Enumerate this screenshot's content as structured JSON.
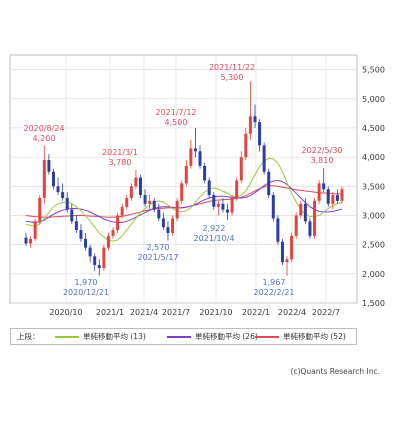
{
  "chart_data": {
    "type": "candlestick",
    "y_ticks": [
      "1,500",
      "2,000",
      "2,500",
      "3,000",
      "3,500",
      "4,000",
      "4,500",
      "5,000",
      "5,500"
    ],
    "x_ticks": [
      "2020/10",
      "2021/1",
      "2021/4",
      "2021/7",
      "2021/10",
      "2022/1",
      "2022/4",
      "2022/7"
    ],
    "ylim": [
      1500,
      5750
    ],
    "grid": true,
    "colors": {
      "up": "#e8413b",
      "down": "#2a3fa3",
      "ma13": "#9cc63b",
      "ma26": "#7a3fd1",
      "ma52": "#e0485a",
      "annot_high": "#e0485a",
      "annot_low": "#4a6fc0"
    },
    "annotations": [
      {
        "date": "2020/8/24",
        "value": "4,200",
        "kind": "high"
      },
      {
        "date": "2021/3/1",
        "value": "3,780",
        "kind": "high"
      },
      {
        "date": "2021/7/12",
        "value": "4,500",
        "kind": "high"
      },
      {
        "date": "2021/11/22",
        "value": "5,300",
        "kind": "high"
      },
      {
        "date": "2022/5/30",
        "value": "3,810",
        "kind": "high"
      },
      {
        "date": "2020/12/21",
        "value": "1,970",
        "kind": "low"
      },
      {
        "date": "2021/5/17",
        "value": "2,570",
        "kind": "low"
      },
      {
        "date": "2021/10/4",
        "value": "2,922",
        "kind": "low"
      },
      {
        "date": "2022/2/21",
        "value": "1,967",
        "kind": "low"
      }
    ],
    "candles": [
      [
        2620,
        2700,
        2480,
        2520
      ],
      [
        2520,
        2640,
        2450,
        2600
      ],
      [
        2600,
        2950,
        2560,
        2900
      ],
      [
        2900,
        3350,
        2850,
        3300
      ],
      [
        3300,
        4200,
        3200,
        3950
      ],
      [
        3950,
        4050,
        3700,
        3750
      ],
      [
        3750,
        3800,
        3450,
        3500
      ],
      [
        3500,
        3650,
        3350,
        3400
      ],
      [
        3400,
        3550,
        3250,
        3300
      ],
      [
        3300,
        3400,
        3050,
        3100
      ],
      [
        3100,
        3200,
        2850,
        2900
      ],
      [
        2900,
        3000,
        2700,
        2750
      ],
      [
        2750,
        2850,
        2550,
        2600
      ],
      [
        2600,
        2700,
        2400,
        2450
      ],
      [
        2450,
        2500,
        2200,
        2300
      ],
      [
        2300,
        2350,
        2050,
        2150
      ],
      [
        2150,
        2250,
        1970,
        2100
      ],
      [
        2100,
        2500,
        2050,
        2450
      ],
      [
        2450,
        2700,
        2400,
        2650
      ],
      [
        2650,
        2800,
        2600,
        2750
      ],
      [
        2750,
        3050,
        2700,
        3000
      ],
      [
        3000,
        3200,
        2950,
        3150
      ],
      [
        3150,
        3350,
        3100,
        3300
      ],
      [
        3300,
        3550,
        3250,
        3500
      ],
      [
        3500,
        3780,
        3450,
        3650
      ],
      [
        3650,
        3700,
        3300,
        3350
      ],
      [
        3350,
        3450,
        3150,
        3200
      ],
      [
        3200,
        3350,
        3100,
        3250
      ],
      [
        3250,
        3300,
        3050,
        3100
      ],
      [
        3100,
        3200,
        2900,
        2950
      ],
      [
        2950,
        3050,
        2750,
        2800
      ],
      [
        2800,
        2900,
        2570,
        2700
      ],
      [
        2700,
        3000,
        2650,
        2950
      ],
      [
        2950,
        3300,
        2900,
        3250
      ],
      [
        3250,
        3600,
        3200,
        3550
      ],
      [
        3550,
        3950,
        3500,
        3850
      ],
      [
        3850,
        4300,
        3800,
        4150
      ],
      [
        4150,
        4500,
        4000,
        4100
      ],
      [
        4100,
        4200,
        3800,
        3850
      ],
      [
        3850,
        3900,
        3550,
        3600
      ],
      [
        3600,
        3650,
        3300,
        3350
      ],
      [
        3350,
        3400,
        3100,
        3150
      ],
      [
        3150,
        3250,
        3000,
        3200
      ],
      [
        3200,
        3300,
        3050,
        3100
      ],
      [
        3100,
        3200,
        2922,
        3050
      ],
      [
        3050,
        3350,
        3000,
        3300
      ],
      [
        3300,
        3650,
        3250,
        3600
      ],
      [
        3600,
        4100,
        3550,
        4000
      ],
      [
        4000,
        4500,
        3950,
        4400
      ],
      [
        4400,
        5300,
        4300,
        4700
      ],
      [
        4700,
        4900,
        4500,
        4600
      ],
      [
        4600,
        4650,
        4100,
        4200
      ],
      [
        4200,
        4250,
        3700,
        3750
      ],
      [
        3750,
        3800,
        3300,
        3350
      ],
      [
        3350,
        3400,
        2900,
        2950
      ],
      [
        2950,
        3000,
        2500,
        2550
      ],
      [
        2550,
        2600,
        2150,
        2200
      ],
      [
        2200,
        2300,
        1967,
        2250
      ],
      [
        2250,
        2700,
        2200,
        2650
      ],
      [
        2650,
        3050,
        2600,
        3000
      ],
      [
        3000,
        3250,
        2950,
        3200
      ],
      [
        3200,
        3300,
        2850,
        2900
      ],
      [
        2900,
        2950,
        2600,
        2650
      ],
      [
        2650,
        3300,
        2600,
        3250
      ],
      [
        3250,
        3600,
        3200,
        3550
      ],
      [
        3550,
        3810,
        3400,
        3450
      ],
      [
        3450,
        3500,
        3150,
        3200
      ],
      [
        3200,
        3400,
        3100,
        3350
      ],
      [
        3350,
        3450,
        3200,
        3250
      ],
      [
        3250,
        3500,
        3200,
        3450
      ]
    ],
    "ma13": [
      2850,
      2830,
      2820,
      2850,
      2950,
      3050,
      3150,
      3200,
      3220,
      3230,
      3200,
      3150,
      3080,
      3000,
      2900,
      2800,
      2700,
      2630,
      2580,
      2560,
      2580,
      2650,
      2750,
      2850,
      2950,
      3050,
      3120,
      3180,
      3230,
      3250,
      3230,
      3180,
      3120,
      3080,
      3060,
      3080,
      3130,
      3220,
      3320,
      3400,
      3450,
      3470,
      3450,
      3420,
      3380,
      3330,
      3320,
      3350,
      3420,
      3550,
      3700,
      3840,
      3930,
      3980,
      3970,
      3900,
      3750,
      3560,
      3380,
      3230,
      3100,
      3020,
      2980,
      2980,
      3000,
      3060,
      3120,
      3170,
      3200,
      3220
    ],
    "ma26": [
      2900,
      2890,
      2880,
      2890,
      2920,
      2970,
      3020,
      3060,
      3090,
      3110,
      3120,
      3120,
      3110,
      3090,
      3060,
      3020,
      2980,
      2940,
      2910,
      2890,
      2880,
      2880,
      2900,
      2930,
      2970,
      3010,
      3050,
      3090,
      3120,
      3140,
      3150,
      3150,
      3140,
      3130,
      3130,
      3140,
      3160,
      3190,
      3230,
      3270,
      3300,
      3320,
      3330,
      3330,
      3320,
      3310,
      3300,
      3300,
      3310,
      3340,
      3390,
      3450,
      3510,
      3560,
      3590,
      3600,
      3580,
      3530,
      3460,
      3380,
      3300,
      3220,
      3150,
      3100,
      3070,
      3060,
      3060,
      3070,
      3090,
      3110
    ],
    "ma52": [
      3000,
      2990,
      2980,
      2975,
      2970,
      2970,
      2975,
      2980,
      2985,
      2990,
      2995,
      3000,
      3000,
      2995,
      2990,
      2985,
      2980,
      2975,
      2970,
      2970,
      2975,
      2985,
      3000,
      3020,
      3040,
      3060,
      3080,
      3095,
      3110,
      3120,
      3125,
      3130,
      3130,
      3130,
      3135,
      3145,
      3160,
      3180,
      3200,
      3220,
      3240,
      3255,
      3265,
      3270,
      3275,
      3280,
      3290,
      3310,
      3340,
      3380,
      3420,
      3460,
      3490,
      3510,
      3510,
      3500,
      3485,
      3470,
      3455,
      3440,
      3430,
      3420,
      3410,
      3400,
      3390,
      3385,
      3380,
      3375,
      3370,
      3365
    ]
  },
  "legend": {
    "prefix": "上段：",
    "items": [
      {
        "label": "単純移動平均 (13)"
      },
      {
        "label": "単純移動平均 (26)"
      },
      {
        "label": "単純移動平均 (52)"
      }
    ]
  },
  "source": "(c)Quants Research Inc."
}
